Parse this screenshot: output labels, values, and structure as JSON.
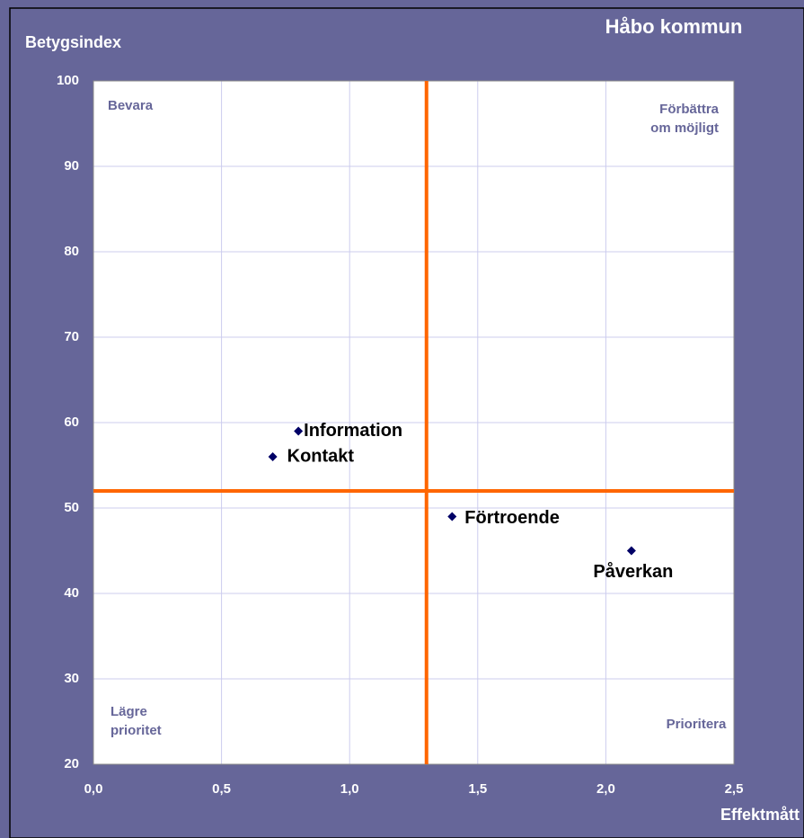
{
  "chart_data": {
    "type": "scatter",
    "title": "Håbo kommun",
    "y_label": "Betygsindex",
    "x_label": "Effektmått",
    "series": [
      {
        "name": null,
        "color": "#000066",
        "labels": [
          "Information",
          "Kontakt",
          "Förtroende",
          "Påverkan"
        ],
        "x": [
          0.8,
          0.7,
          1.4,
          2.1
        ],
        "values": [
          59,
          56,
          49,
          45
        ]
      }
    ],
    "xlim": [
      0,
      2.5
    ],
    "xticks": [
      {
        "value": 0,
        "label": "0,0"
      },
      {
        "value": 0.5,
        "label": "0,5"
      },
      {
        "value": 1,
        "label": "1,0"
      },
      {
        "value": 1.5,
        "label": "1,5"
      },
      {
        "value": 2,
        "label": "2,0"
      },
      {
        "value": 2.5,
        "label": "2,5"
      }
    ],
    "ylim": [
      20,
      100
    ],
    "yticks": [
      20,
      30,
      40,
      50,
      60,
      70,
      80,
      90,
      100
    ],
    "grid": true,
    "reference_lines": {
      "x": 1.3,
      "y": 52,
      "color": "#ff6600"
    },
    "quadrant_labels": {
      "top_left": [
        "Bevara"
      ],
      "top_right": [
        "Förbättra",
        "om möjligt"
      ],
      "bottom_left": [
        "Lägre",
        "prioritet"
      ],
      "bottom_right": [
        "Prioritera"
      ]
    }
  }
}
